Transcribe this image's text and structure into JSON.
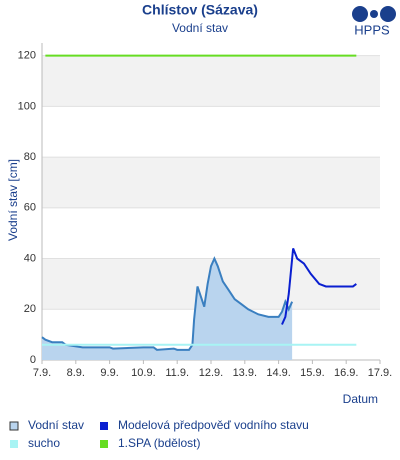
{
  "chart_data": {
    "type": "line",
    "title": "Chlístov (Sázava)",
    "subtitle": "Vodní stav",
    "logo": "HPPS",
    "y_label": "Vodní stav [cm]",
    "x_label": "Datum",
    "xlim": [
      0,
      10
    ],
    "ylim": [
      0,
      125
    ],
    "xticks": [
      {
        "value": 0,
        "label": "7.9."
      },
      {
        "value": 1,
        "label": "8.9."
      },
      {
        "value": 2,
        "label": "9.9."
      },
      {
        "value": 3,
        "label": "10.9."
      },
      {
        "value": 4,
        "label": "11.9."
      },
      {
        "value": 5,
        "label": "12.9."
      },
      {
        "value": 6,
        "label": "13.9."
      },
      {
        "value": 7,
        "label": "14.9."
      },
      {
        "value": 8,
        "label": "15.9."
      },
      {
        "value": 9,
        "label": "16.9."
      },
      {
        "value": 10,
        "label": "17.9."
      }
    ],
    "yticks": [
      0,
      20,
      40,
      60,
      80,
      100,
      120
    ],
    "grid": true,
    "series": [
      {
        "name": "Vodní stav",
        "color": "#3a7fc0",
        "fill": "#b9d4ee",
        "x": [
          0,
          0.1,
          0.3,
          0.6,
          0.7,
          1.2,
          2.0,
          2.1,
          3.0,
          3.3,
          3.4,
          3.9,
          4.0,
          4.35,
          4.45,
          4.5,
          4.6,
          4.7,
          4.8,
          4.9,
          5.0,
          5.1,
          5.2,
          5.35,
          5.5,
          5.7,
          5.9,
          6.1,
          6.4,
          6.7,
          7.0,
          7.1,
          7.2,
          7.3,
          7.4
        ],
        "values": [
          9,
          8,
          7,
          7,
          6,
          5,
          5,
          4.5,
          5,
          5,
          4,
          4.5,
          4,
          4,
          6,
          16,
          29,
          25,
          21,
          30,
          37,
          40,
          37,
          31,
          28,
          24,
          22,
          20,
          18,
          17,
          17,
          19,
          23,
          20,
          23
        ]
      },
      {
        "name": "Modelová předpověď vodního stavu",
        "color": "#0a1fd0",
        "x": [
          7.1,
          7.2,
          7.3,
          7.43,
          7.55,
          7.75,
          7.95,
          8.2,
          8.4,
          9.2,
          9.3
        ],
        "values": [
          14,
          17,
          26,
          44,
          40,
          38,
          34,
          30,
          29,
          29,
          30
        ]
      },
      {
        "name": "sucho",
        "color": "#a8f4f4",
        "x": [
          0,
          9.3
        ],
        "values": [
          6,
          6
        ]
      },
      {
        "name": "1.SPA (bdělost)",
        "color": "#66dd22",
        "x": [
          0.1,
          9.3
        ],
        "values": [
          120,
          120
        ]
      }
    ]
  }
}
